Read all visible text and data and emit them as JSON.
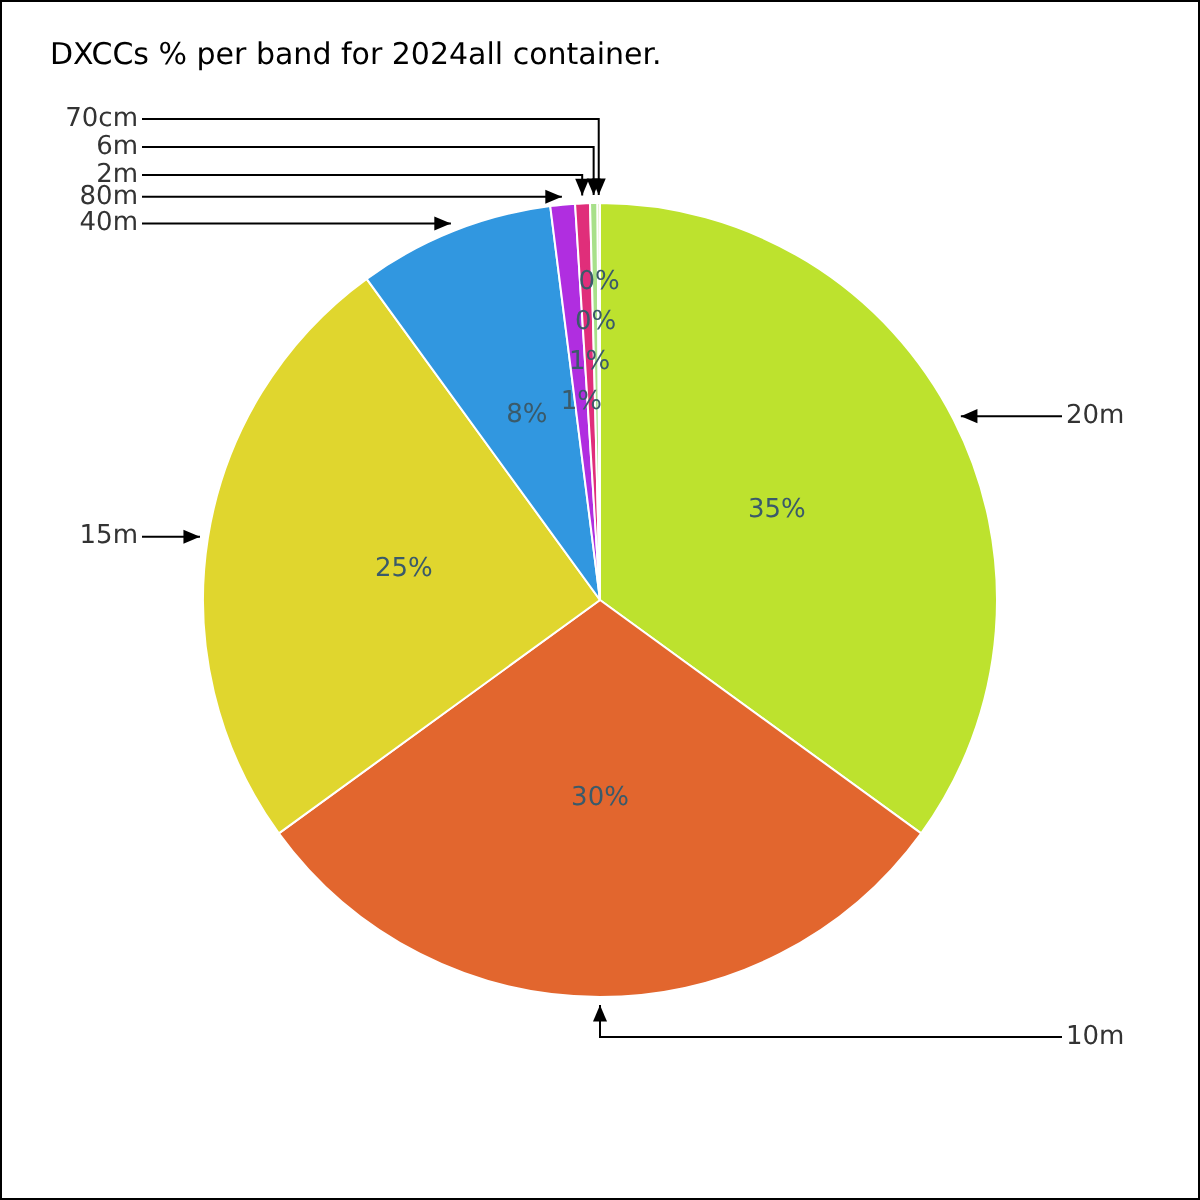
{
  "chart_data": {
    "type": "pie",
    "title": "DXCCs % per band for 2024all container.",
    "categories": [
      "20m",
      "10m",
      "15m",
      "40m",
      "80m",
      "2m",
      "6m",
      "70cm"
    ],
    "values": [
      35,
      30,
      25,
      8,
      1,
      0.6,
      0.3,
      0.1
    ],
    "colors": [
      "#bde22e",
      "#e2662e",
      "#e0d62e",
      "#3197e0",
      "#b02ee0",
      "#e02e7a",
      "#a8e08a",
      "#d0e0a0"
    ],
    "value_labels": [
      "35%",
      "30%",
      "25%",
      "8%",
      "1%",
      "1%",
      "0%",
      "0%"
    ],
    "legend": false
  }
}
